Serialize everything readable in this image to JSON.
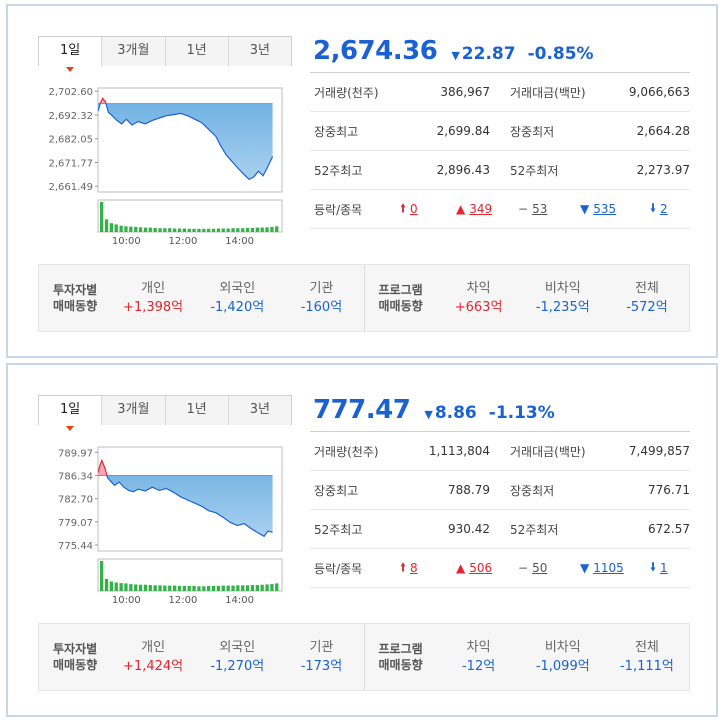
{
  "panels": [
    {
      "tabs": [
        "1일",
        "3개월",
        "1년",
        "3년"
      ],
      "active_tab": 0,
      "index": "2,674.36",
      "change_arrow": "▼",
      "change": "22.87",
      "change_rate": "-0.85%",
      "stats": {
        "volume_label": "거래량(천주)",
        "volume": "386,967",
        "value_label": "거래대금(백만)",
        "value": "9,066,663",
        "high_label": "장중최고",
        "high": "2,699.84",
        "low_label": "장중최저",
        "low": "2,664.28",
        "w52_high_label": "52주최고",
        "w52_high": "2,896.43",
        "w52_low_label": "52주최저",
        "w52_low": "2,273.97",
        "breadth_label": "등락/종목",
        "upper_limit": "0",
        "rise": "349",
        "flat": "53",
        "fall": "535",
        "lower_limit": "2"
      },
      "investor_flow": {
        "title_line1": "투자자별",
        "title_line2": "매매동향",
        "items": [
          {
            "label": "개인",
            "value": "+1,398억",
            "color": "#e3262f"
          },
          {
            "label": "외국인",
            "value": "-1,420억",
            "color": "#1a62d4"
          },
          {
            "label": "기관",
            "value": "-160억",
            "color": "#1a62d4"
          }
        ]
      },
      "program_flow": {
        "title_line1": "프로그램",
        "title_line2": "매매동향",
        "items": [
          {
            "label": "차익",
            "value": "+663억",
            "color": "#e3262f"
          },
          {
            "label": "비차익",
            "value": "-1,235억",
            "color": "#1a62d4"
          },
          {
            "label": "전체",
            "value": "-572억",
            "color": "#1a62d4"
          }
        ]
      },
      "chart_data": {
        "type": "area",
        "y_ticks": [
          "2,702.60",
          "2,692.32",
          "2,682.05",
          "2,671.77",
          "2,661.49"
        ],
        "y_tick_values": [
          2702.6,
          2692.32,
          2682.05,
          2671.77,
          2661.49
        ],
        "x_ticks": [
          "10:00",
          "12:00",
          "14:00"
        ],
        "x_tick_times": [
          600,
          720,
          840
        ],
        "x_range": [
          540,
          930
        ],
        "y_range": [
          2659.0,
          2704.0
        ],
        "prev_close": 2697.23,
        "series": [
          {
            "x": 540,
            "y": 2694.0
          },
          {
            "x": 545,
            "y": 2697.5
          },
          {
            "x": 550,
            "y": 2699.5
          },
          {
            "x": 556,
            "y": 2698.0
          },
          {
            "x": 562,
            "y": 2693.5
          },
          {
            "x": 570,
            "y": 2692.0
          },
          {
            "x": 580,
            "y": 2690.0
          },
          {
            "x": 590,
            "y": 2688.5
          },
          {
            "x": 600,
            "y": 2690.5
          },
          {
            "x": 612,
            "y": 2688.0
          },
          {
            "x": 625,
            "y": 2689.5
          },
          {
            "x": 640,
            "y": 2688.5
          },
          {
            "x": 655,
            "y": 2690.0
          },
          {
            "x": 670,
            "y": 2691.0
          },
          {
            "x": 685,
            "y": 2692.0
          },
          {
            "x": 700,
            "y": 2692.5
          },
          {
            "x": 715,
            "y": 2693.0
          },
          {
            "x": 730,
            "y": 2692.0
          },
          {
            "x": 745,
            "y": 2690.5
          },
          {
            "x": 760,
            "y": 2689.0
          },
          {
            "x": 775,
            "y": 2686.0
          },
          {
            "x": 790,
            "y": 2683.0
          },
          {
            "x": 800,
            "y": 2679.0
          },
          {
            "x": 812,
            "y": 2675.0
          },
          {
            "x": 825,
            "y": 2672.0
          },
          {
            "x": 838,
            "y": 2669.0
          },
          {
            "x": 850,
            "y": 2666.5
          },
          {
            "x": 860,
            "y": 2664.5
          },
          {
            "x": 870,
            "y": 2665.5
          },
          {
            "x": 880,
            "y": 2668.0
          },
          {
            "x": 890,
            "y": 2666.0
          },
          {
            "x": 900,
            "y": 2670.0
          },
          {
            "x": 910,
            "y": 2674.36
          }
        ],
        "volume": [
          95,
          40,
          28,
          24,
          20,
          18,
          17,
          16,
          15,
          14,
          14,
          13,
          12,
          12,
          12,
          11,
          11,
          11,
          10,
          10,
          10,
          10,
          10,
          10,
          11,
          11,
          11,
          12,
          12,
          12,
          13,
          13,
          14,
          14,
          15,
          16,
          18
        ],
        "up_color": "#e3262f",
        "down_color": "#1a62d4"
      }
    },
    {
      "tabs": [
        "1일",
        "3개월",
        "1년",
        "3년"
      ],
      "active_tab": 0,
      "index": "777.47",
      "change_arrow": "▼",
      "change": "8.86",
      "change_rate": "-1.13%",
      "stats": {
        "volume_label": "거래량(천주)",
        "volume": "1,113,804",
        "value_label": "거래대금(백만)",
        "value": "7,499,857",
        "high_label": "장중최고",
        "high": "788.79",
        "low_label": "장중최저",
        "low": "776.71",
        "w52_high_label": "52주최고",
        "w52_high": "930.42",
        "w52_low_label": "52주최저",
        "w52_low": "672.57",
        "breadth_label": "등락/종목",
        "upper_limit": "8",
        "rise": "506",
        "flat": "50",
        "fall": "1105",
        "lower_limit": "1"
      },
      "investor_flow": {
        "title_line1": "투자자별",
        "title_line2": "매매동향",
        "items": [
          {
            "label": "개인",
            "value": "+1,424억",
            "color": "#e3262f"
          },
          {
            "label": "외국인",
            "value": "-1,270억",
            "color": "#1a62d4"
          },
          {
            "label": "기관",
            "value": "-173억",
            "color": "#1a62d4"
          }
        ]
      },
      "program_flow": {
        "title_line1": "프로그램",
        "title_line2": "매매동향",
        "items": [
          {
            "label": "차익",
            "value": "-12억",
            "color": "#1a62d4"
          },
          {
            "label": "비차익",
            "value": "-1,099억",
            "color": "#1a62d4"
          },
          {
            "label": "전체",
            "value": "-1,111억",
            "color": "#1a62d4"
          }
        ]
      },
      "chart_data": {
        "type": "area",
        "y_ticks": [
          "789.97",
          "786.34",
          "782.70",
          "779.07",
          "775.44"
        ],
        "y_tick_values": [
          789.97,
          786.34,
          782.7,
          779.07,
          775.44
        ],
        "x_ticks": [
          "10:00",
          "12:00",
          "14:00"
        ],
        "x_tick_times": [
          600,
          720,
          840
        ],
        "x_range": [
          540,
          930
        ],
        "y_range": [
          774.5,
          790.8
        ],
        "prev_close": 786.33,
        "series": [
          {
            "x": 540,
            "y": 786.8
          },
          {
            "x": 544,
            "y": 787.9
          },
          {
            "x": 548,
            "y": 788.7
          },
          {
            "x": 552,
            "y": 788.0
          },
          {
            "x": 556,
            "y": 787.2
          },
          {
            "x": 560,
            "y": 786.0
          },
          {
            "x": 566,
            "y": 785.5
          },
          {
            "x": 575,
            "y": 784.8
          },
          {
            "x": 585,
            "y": 785.3
          },
          {
            "x": 595,
            "y": 784.5
          },
          {
            "x": 605,
            "y": 784.0
          },
          {
            "x": 615,
            "y": 783.8
          },
          {
            "x": 625,
            "y": 784.2
          },
          {
            "x": 640,
            "y": 783.9
          },
          {
            "x": 655,
            "y": 784.5
          },
          {
            "x": 670,
            "y": 784.0
          },
          {
            "x": 685,
            "y": 784.3
          },
          {
            "x": 700,
            "y": 783.7
          },
          {
            "x": 715,
            "y": 783.0
          },
          {
            "x": 730,
            "y": 782.5
          },
          {
            "x": 745,
            "y": 782.0
          },
          {
            "x": 760,
            "y": 781.5
          },
          {
            "x": 775,
            "y": 780.8
          },
          {
            "x": 790,
            "y": 780.5
          },
          {
            "x": 805,
            "y": 779.8
          },
          {
            "x": 820,
            "y": 779.0
          },
          {
            "x": 835,
            "y": 778.5
          },
          {
            "x": 850,
            "y": 778.8
          },
          {
            "x": 865,
            "y": 778.0
          },
          {
            "x": 880,
            "y": 777.3
          },
          {
            "x": 892,
            "y": 776.8
          },
          {
            "x": 900,
            "y": 777.6
          },
          {
            "x": 910,
            "y": 777.47
          }
        ],
        "volume": [
          95,
          38,
          30,
          27,
          25,
          24,
          22,
          21,
          20,
          20,
          19,
          18,
          18,
          17,
          17,
          17,
          16,
          16,
          16,
          16,
          15,
          15,
          16,
          16,
          16,
          17,
          17,
          17,
          18,
          18,
          18,
          19,
          19,
          20,
          21,
          22,
          24
        ],
        "up_color": "#e3262f",
        "down_color": "#1a62d4"
      }
    }
  ]
}
